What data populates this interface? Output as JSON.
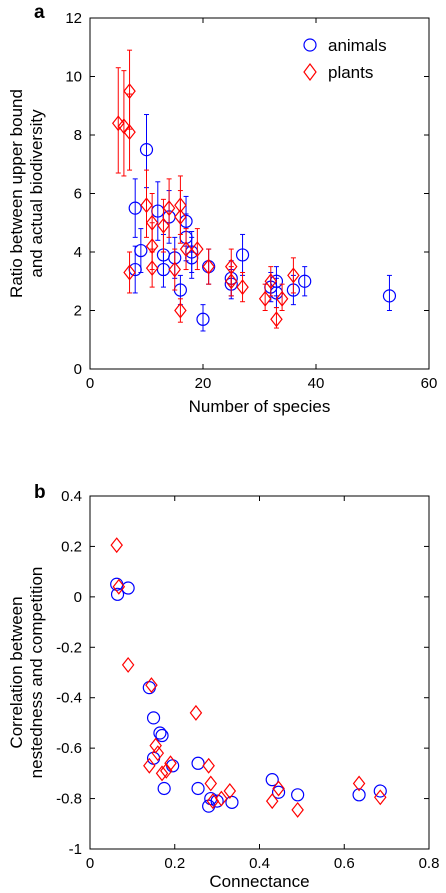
{
  "colors": {
    "animals": "#0000ff",
    "plants": "#ff0000",
    "axis": "#000000"
  },
  "chart_data": [
    {
      "panel": "a",
      "type": "scatter",
      "xlabel": "Number of species",
      "ylabel": [
        "Ratio between upper bound",
        "and actual biodiversity"
      ],
      "xlim": [
        0,
        60
      ],
      "ylim": [
        0,
        12
      ],
      "xticks": [
        0,
        20,
        40,
        60
      ],
      "yticks": [
        0,
        2,
        4,
        6,
        8,
        10,
        12
      ],
      "grid": false,
      "legend": {
        "placement": "top-right",
        "entries": [
          "animals",
          "plants"
        ]
      },
      "error_bars": true,
      "series": [
        {
          "name": "animals",
          "marker": "circle",
          "color": "#0000ff",
          "points": [
            {
              "x": 8,
              "y": 5.5,
              "lo": 4.5,
              "hi": 6.5
            },
            {
              "x": 8,
              "y": 3.4,
              "lo": 2.6,
              "hi": 4.2
            },
            {
              "x": 9,
              "y": 4.05,
              "lo": 3.3,
              "hi": 4.8
            },
            {
              "x": 10,
              "y": 7.5,
              "lo": 6.2,
              "hi": 8.7
            },
            {
              "x": 12,
              "y": 5.4,
              "lo": 4.4,
              "hi": 6.4
            },
            {
              "x": 13,
              "y": 3.9,
              "lo": 3.2,
              "hi": 4.6
            },
            {
              "x": 13,
              "y": 3.4,
              "lo": 2.8,
              "hi": 4.0
            },
            {
              "x": 14,
              "y": 5.2,
              "lo": 4.3,
              "hi": 6.1
            },
            {
              "x": 15,
              "y": 3.8,
              "lo": 3.1,
              "hi": 4.5
            },
            {
              "x": 16,
              "y": 2.7,
              "lo": 2.2,
              "hi": 3.2
            },
            {
              "x": 17,
              "y": 4.5,
              "lo": 3.7,
              "hi": 5.3
            },
            {
              "x": 17,
              "y": 5.05,
              "lo": 4.2,
              "hi": 5.9
            },
            {
              "x": 18,
              "y": 4.0,
              "lo": 3.3,
              "hi": 4.7
            },
            {
              "x": 18,
              "y": 3.8,
              "lo": 3.1,
              "hi": 4.5
            },
            {
              "x": 20,
              "y": 1.7,
              "lo": 1.3,
              "hi": 2.2
            },
            {
              "x": 21,
              "y": 3.5,
              "lo": 2.9,
              "hi": 4.1
            },
            {
              "x": 25,
              "y": 3.1,
              "lo": 2.5,
              "hi": 3.7
            },
            {
              "x": 25,
              "y": 2.9,
              "lo": 2.4,
              "hi": 3.4
            },
            {
              "x": 27,
              "y": 3.9,
              "lo": 3.2,
              "hi": 4.6
            },
            {
              "x": 32,
              "y": 2.8,
              "lo": 2.3,
              "hi": 3.3
            },
            {
              "x": 33,
              "y": 3.0,
              "lo": 2.5,
              "hi": 3.5
            },
            {
              "x": 33,
              "y": 2.6,
              "lo": 2.1,
              "hi": 3.1
            },
            {
              "x": 36,
              "y": 2.7,
              "lo": 2.2,
              "hi": 3.2
            },
            {
              "x": 38,
              "y": 3.0,
              "lo": 2.5,
              "hi": 3.5
            },
            {
              "x": 53,
              "y": 2.5,
              "lo": 2.0,
              "hi": 3.2
            }
          ]
        },
        {
          "name": "plants",
          "marker": "diamond",
          "color": "#ff0000",
          "points": [
            {
              "x": 5,
              "y": 8.4,
              "lo": 6.7,
              "hi": 10.3
            },
            {
              "x": 6,
              "y": 8.3,
              "lo": 6.6,
              "hi": 10.2
            },
            {
              "x": 7,
              "y": 9.5,
              "lo": 8.2,
              "hi": 10.9
            },
            {
              "x": 7,
              "y": 8.1,
              "lo": 6.8,
              "hi": 9.4
            },
            {
              "x": 7,
              "y": 3.3,
              "lo": 2.6,
              "hi": 4.0
            },
            {
              "x": 10,
              "y": 5.6,
              "lo": 4.5,
              "hi": 6.8
            },
            {
              "x": 11,
              "y": 5.0,
              "lo": 4.0,
              "hi": 6.0
            },
            {
              "x": 11,
              "y": 4.2,
              "lo": 3.4,
              "hi": 5.0
            },
            {
              "x": 11,
              "y": 3.45,
              "lo": 2.8,
              "hi": 4.1
            },
            {
              "x": 13,
              "y": 4.9,
              "lo": 4.0,
              "hi": 5.8
            },
            {
              "x": 14,
              "y": 5.5,
              "lo": 4.5,
              "hi": 6.5
            },
            {
              "x": 15,
              "y": 3.4,
              "lo": 2.7,
              "hi": 4.1
            },
            {
              "x": 16,
              "y": 5.6,
              "lo": 4.6,
              "hi": 6.6
            },
            {
              "x": 16,
              "y": 5.2,
              "lo": 4.3,
              "hi": 6.1
            },
            {
              "x": 16,
              "y": 2.0,
              "lo": 1.6,
              "hi": 2.4
            },
            {
              "x": 17,
              "y": 4.1,
              "lo": 3.4,
              "hi": 4.8
            },
            {
              "x": 19,
              "y": 4.1,
              "lo": 3.4,
              "hi": 4.8
            },
            {
              "x": 21,
              "y": 3.5,
              "lo": 2.9,
              "hi": 4.1
            },
            {
              "x": 25,
              "y": 3.5,
              "lo": 2.9,
              "hi": 4.1
            },
            {
              "x": 25,
              "y": 3.0,
              "lo": 2.5,
              "hi": 3.5
            },
            {
              "x": 27,
              "y": 2.8,
              "lo": 2.3,
              "hi": 3.3
            },
            {
              "x": 31,
              "y": 2.4,
              "lo": 2.0,
              "hi": 2.9
            },
            {
              "x": 32,
              "y": 3.0,
              "lo": 2.5,
              "hi": 3.5
            },
            {
              "x": 33,
              "y": 1.7,
              "lo": 1.4,
              "hi": 2.1
            },
            {
              "x": 34,
              "y": 2.4,
              "lo": 2.0,
              "hi": 2.9
            },
            {
              "x": 36,
              "y": 3.2,
              "lo": 2.6,
              "hi": 3.8
            }
          ]
        }
      ]
    },
    {
      "panel": "b",
      "type": "scatter",
      "xlabel": "Connectance",
      "ylabel": [
        "Correlation between",
        "nestedness and competition"
      ],
      "xlim": [
        0,
        0.8
      ],
      "ylim": [
        -1,
        0.4
      ],
      "xticks": [
        0,
        0.2,
        0.4,
        0.6,
        0.8
      ],
      "yticks": [
        -1,
        -0.8,
        -0.6,
        -0.4,
        -0.2,
        0,
        0.2,
        0.4
      ],
      "grid": false,
      "error_bars": false,
      "series": [
        {
          "name": "animals",
          "marker": "circle",
          "color": "#0000ff",
          "points": [
            {
              "x": 0.063,
              "y": 0.05
            },
            {
              "x": 0.065,
              "y": 0.01
            },
            {
              "x": 0.09,
              "y": 0.035
            },
            {
              "x": 0.14,
              "y": -0.36
            },
            {
              "x": 0.15,
              "y": -0.48
            },
            {
              "x": 0.15,
              "y": -0.64
            },
            {
              "x": 0.165,
              "y": -0.54
            },
            {
              "x": 0.17,
              "y": -0.55
            },
            {
              "x": 0.175,
              "y": -0.76
            },
            {
              "x": 0.195,
              "y": -0.67
            },
            {
              "x": 0.255,
              "y": -0.66
            },
            {
              "x": 0.255,
              "y": -0.76
            },
            {
              "x": 0.28,
              "y": -0.83
            },
            {
              "x": 0.285,
              "y": -0.8
            },
            {
              "x": 0.3,
              "y": -0.81
            },
            {
              "x": 0.335,
              "y": -0.815
            },
            {
              "x": 0.43,
              "y": -0.725
            },
            {
              "x": 0.445,
              "y": -0.775
            },
            {
              "x": 0.49,
              "y": -0.785
            },
            {
              "x": 0.635,
              "y": -0.785
            },
            {
              "x": 0.685,
              "y": -0.77
            }
          ]
        },
        {
          "name": "plants",
          "marker": "diamond",
          "color": "#ff0000",
          "points": [
            {
              "x": 0.063,
              "y": 0.205
            },
            {
              "x": 0.068,
              "y": 0.04
            },
            {
              "x": 0.09,
              "y": -0.27
            },
            {
              "x": 0.145,
              "y": -0.35
            },
            {
              "x": 0.14,
              "y": -0.67
            },
            {
              "x": 0.155,
              "y": -0.59
            },
            {
              "x": 0.16,
              "y": -0.62
            },
            {
              "x": 0.17,
              "y": -0.7
            },
            {
              "x": 0.18,
              "y": -0.69
            },
            {
              "x": 0.19,
              "y": -0.66
            },
            {
              "x": 0.25,
              "y": -0.46
            },
            {
              "x": 0.28,
              "y": -0.67
            },
            {
              "x": 0.285,
              "y": -0.74
            },
            {
              "x": 0.29,
              "y": -0.81
            },
            {
              "x": 0.31,
              "y": -0.8
            },
            {
              "x": 0.33,
              "y": -0.77
            },
            {
              "x": 0.43,
              "y": -0.81
            },
            {
              "x": 0.445,
              "y": -0.76
            },
            {
              "x": 0.49,
              "y": -0.845
            },
            {
              "x": 0.635,
              "y": -0.74
            },
            {
              "x": 0.685,
              "y": -0.795
            }
          ]
        }
      ]
    }
  ]
}
